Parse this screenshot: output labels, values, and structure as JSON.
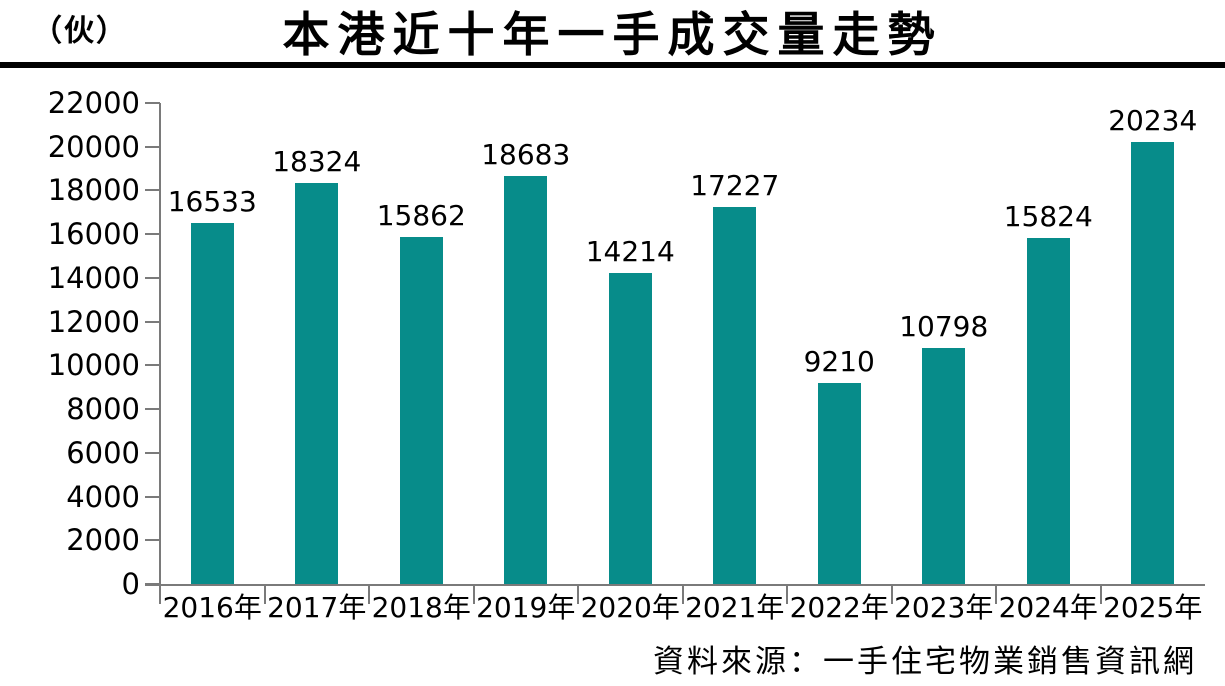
{
  "header": {
    "unit_label": "（伙）",
    "title": "本港近十年一手成交量走勢"
  },
  "source": "資料來源：一手住宅物業銷售資訊網",
  "chart_data": {
    "type": "bar",
    "title": "本港近十年一手成交量走勢",
    "categories": [
      "2016年",
      "2017年",
      "2018年",
      "2019年",
      "2020年",
      "2021年",
      "2022年",
      "2023年",
      "2024年",
      "2025年"
    ],
    "values": [
      16533,
      18324,
      15862,
      18683,
      14214,
      17227,
      9210,
      10798,
      15824,
      20234
    ],
    "xlabel": "",
    "ylabel": "（伙）",
    "ylim": [
      0,
      22000
    ],
    "ytick_step": 2000,
    "ytick_labels": [
      "0",
      "2000",
      "4000",
      "6000",
      "8000",
      "10000",
      "12000",
      "14000",
      "16000",
      "18000",
      "20000",
      "22000"
    ],
    "value_labels_shown": true,
    "grid": false,
    "legend": "none",
    "bar_color": "#078c8a",
    "axis_color": "#7a7a7a",
    "text_color": "#000000"
  }
}
